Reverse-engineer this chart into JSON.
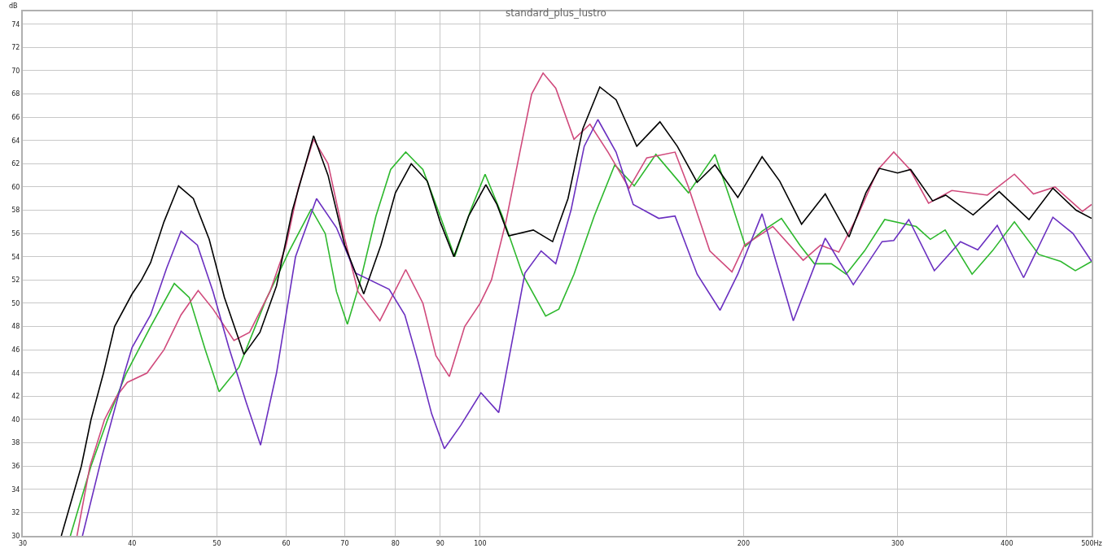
{
  "chart_data": {
    "type": "line",
    "title": "standard_plus_lustro",
    "ylabel": "dB",
    "log": "x",
    "grid": true,
    "marker": "none",
    "line_style": "solid",
    "xlim": [
      30,
      500
    ],
    "ylim": [
      30,
      75.1
    ],
    "xticks": [
      30,
      40,
      50,
      60,
      70,
      80,
      90,
      100,
      200,
      300,
      400,
      {
        "value": 500,
        "label": "500Hz"
      }
    ],
    "yticks": [
      30,
      32,
      34,
      36,
      38,
      40,
      42,
      44,
      46,
      48,
      50,
      52,
      54,
      56,
      58,
      60,
      62,
      64,
      66,
      68,
      70,
      72,
      74
    ],
    "series": [
      {
        "color": "#2db82d",
        "x": [
          34.0,
          35.9,
          37.5,
          39.4,
          42.0,
          44.7,
          46.5,
          48.5,
          50.3,
          53,
          56.9,
          60.5,
          64.1,
          66.5,
          68.5,
          70.5,
          73,
          76,
          79,
          82.2,
          86,
          90,
          93.5,
          97.5,
          101.3,
          106,
          111.8,
          118.8,
          123,
          128,
          135,
          142.5,
          150,
          158.8,
          173,
          185.5,
          193,
          201,
          210,
          221,
          232,
          241,
          252,
          262,
          275,
          290,
          315,
          327,
          340,
          365,
          385,
          408,
          435,
          461,
          479,
          500
        ],
        "values": [
          30,
          36,
          40,
          44,
          48,
          51.7,
          50.5,
          46,
          42.4,
          44.5,
          50.3,
          54.5,
          58.1,
          56,
          51,
          48.2,
          52,
          57.5,
          61.5,
          63,
          61.5,
          57.5,
          54,
          58,
          61.1,
          57.5,
          52.5,
          48.9,
          49.5,
          52.5,
          57.5,
          61.9,
          60.1,
          62.8,
          59.5,
          62.8,
          59,
          54.9,
          56.2,
          57.3,
          55,
          53.4,
          53.4,
          52.5,
          54.5,
          57.2,
          56.6,
          55.5,
          56.3,
          52.5,
          54.5,
          57,
          54.2,
          53.6,
          52.8,
          53.6
        ]
      },
      {
        "color": "#d04a7c",
        "x": [
          34.6,
          35.8,
          37.2,
          38.4,
          39.5,
          41.6,
          43.5,
          45.5,
          47.6,
          49.5,
          52.3,
          54.5,
          57.5,
          60,
          62,
          64.5,
          67,
          69.5,
          72.5,
          76.8,
          82.2,
          86,
          89,
          92.2,
          96,
          100,
          103,
          107,
          111,
          114.5,
          118,
          122,
          128,
          133.5,
          140,
          148,
          155,
          167,
          173,
          183,
          194,
          200.5,
          216,
          234,
          245,
          257,
          270,
          285,
          297,
          310,
          325.5,
          346,
          380,
          408,
          429,
          454,
          488,
          500
        ],
        "values": [
          30,
          36,
          40,
          42,
          43.2,
          44,
          46,
          49,
          51.1,
          49.5,
          46.8,
          47.5,
          51,
          55,
          60,
          64.1,
          62,
          56.5,
          51,
          48.5,
          52.9,
          50,
          45.5,
          43.7,
          48,
          50,
          52,
          57,
          63,
          68,
          69.8,
          68.5,
          64.1,
          65.4,
          63,
          59.9,
          62.5,
          63,
          60,
          54.5,
          52.7,
          55,
          56.6,
          53.7,
          55,
          54.4,
          57.5,
          61.5,
          63,
          61.5,
          58.6,
          59.7,
          59.3,
          61.1,
          59.4,
          60,
          57.9,
          58.5
        ]
      },
      {
        "color": "#6a2fc0",
        "x": [
          35.1,
          37,
          39.2,
          40,
          42,
          43.8,
          45.5,
          47.5,
          49.5,
          51.6,
          54,
          56.1,
          58.5,
          61.5,
          65.0,
          68.5,
          72,
          78.7,
          82,
          84.9,
          88,
          91.0,
          95,
          100.2,
          105,
          112.5,
          117.4,
          122,
          127,
          131.5,
          136.3,
          143,
          149.6,
          160,
          167,
          177,
          188,
          197,
          210,
          219,
          228,
          248,
          267,
          288,
          297,
          309,
          330.5,
          354,
          370.5,
          390,
          418,
          451.5,
          476,
          500
        ],
        "values": [
          30,
          37,
          44,
          46.2,
          49,
          53,
          56.2,
          55,
          51,
          46.2,
          41.5,
          37.8,
          44,
          54,
          59,
          56.5,
          52.6,
          51.2,
          49,
          45,
          40.5,
          37.5,
          39.5,
          42.3,
          40.6,
          52.6,
          54.5,
          53.4,
          58,
          63.5,
          65.8,
          63,
          58.5,
          57.3,
          57.5,
          52.5,
          49.4,
          52.5,
          57.7,
          53,
          48.5,
          55.6,
          51.6,
          55.3,
          55.4,
          57.2,
          52.8,
          55.3,
          54.6,
          56.7,
          52.2,
          57.4,
          56,
          53.6
        ]
      },
      {
        "color": "#000000",
        "x": [
          33.2,
          35,
          35.9,
          37.1,
          38.2,
          40,
          41,
          42,
          43.5,
          45.2,
          47,
          49,
          51,
          53.7,
          56,
          58.5,
          61,
          64.5,
          67,
          70,
          73.6,
          77,
          80,
          83.4,
          87,
          90,
          93.3,
          97,
          101.5,
          104.5,
          107.8,
          115,
          121,
          126,
          131,
          137,
          143,
          151,
          160.5,
          168,
          177,
          185.5,
          197,
          210,
          220,
          233,
          248,
          264,
          276,
          286,
          300,
          310.5,
          329,
          340.5,
          366,
          392,
          424,
          451.5,
          480,
          500
        ],
        "values": [
          30,
          36,
          40,
          44,
          48,
          50.8,
          52,
          53.5,
          57,
          60.1,
          59,
          55.5,
          50.5,
          45.6,
          47.5,
          51.5,
          58,
          64.4,
          61,
          55,
          50.8,
          55,
          59.5,
          62,
          60.5,
          57,
          54,
          57.5,
          60.2,
          58.5,
          55.8,
          56.3,
          55.3,
          59,
          65,
          68.6,
          67.5,
          63.5,
          65.6,
          63.5,
          60.4,
          61.9,
          59.1,
          62.6,
          60.5,
          56.8,
          59.4,
          55.7,
          59.5,
          61.6,
          61.2,
          61.5,
          58.8,
          59.3,
          57.6,
          59.6,
          57.2,
          59.9,
          58,
          57.3
        ]
      }
    ]
  }
}
